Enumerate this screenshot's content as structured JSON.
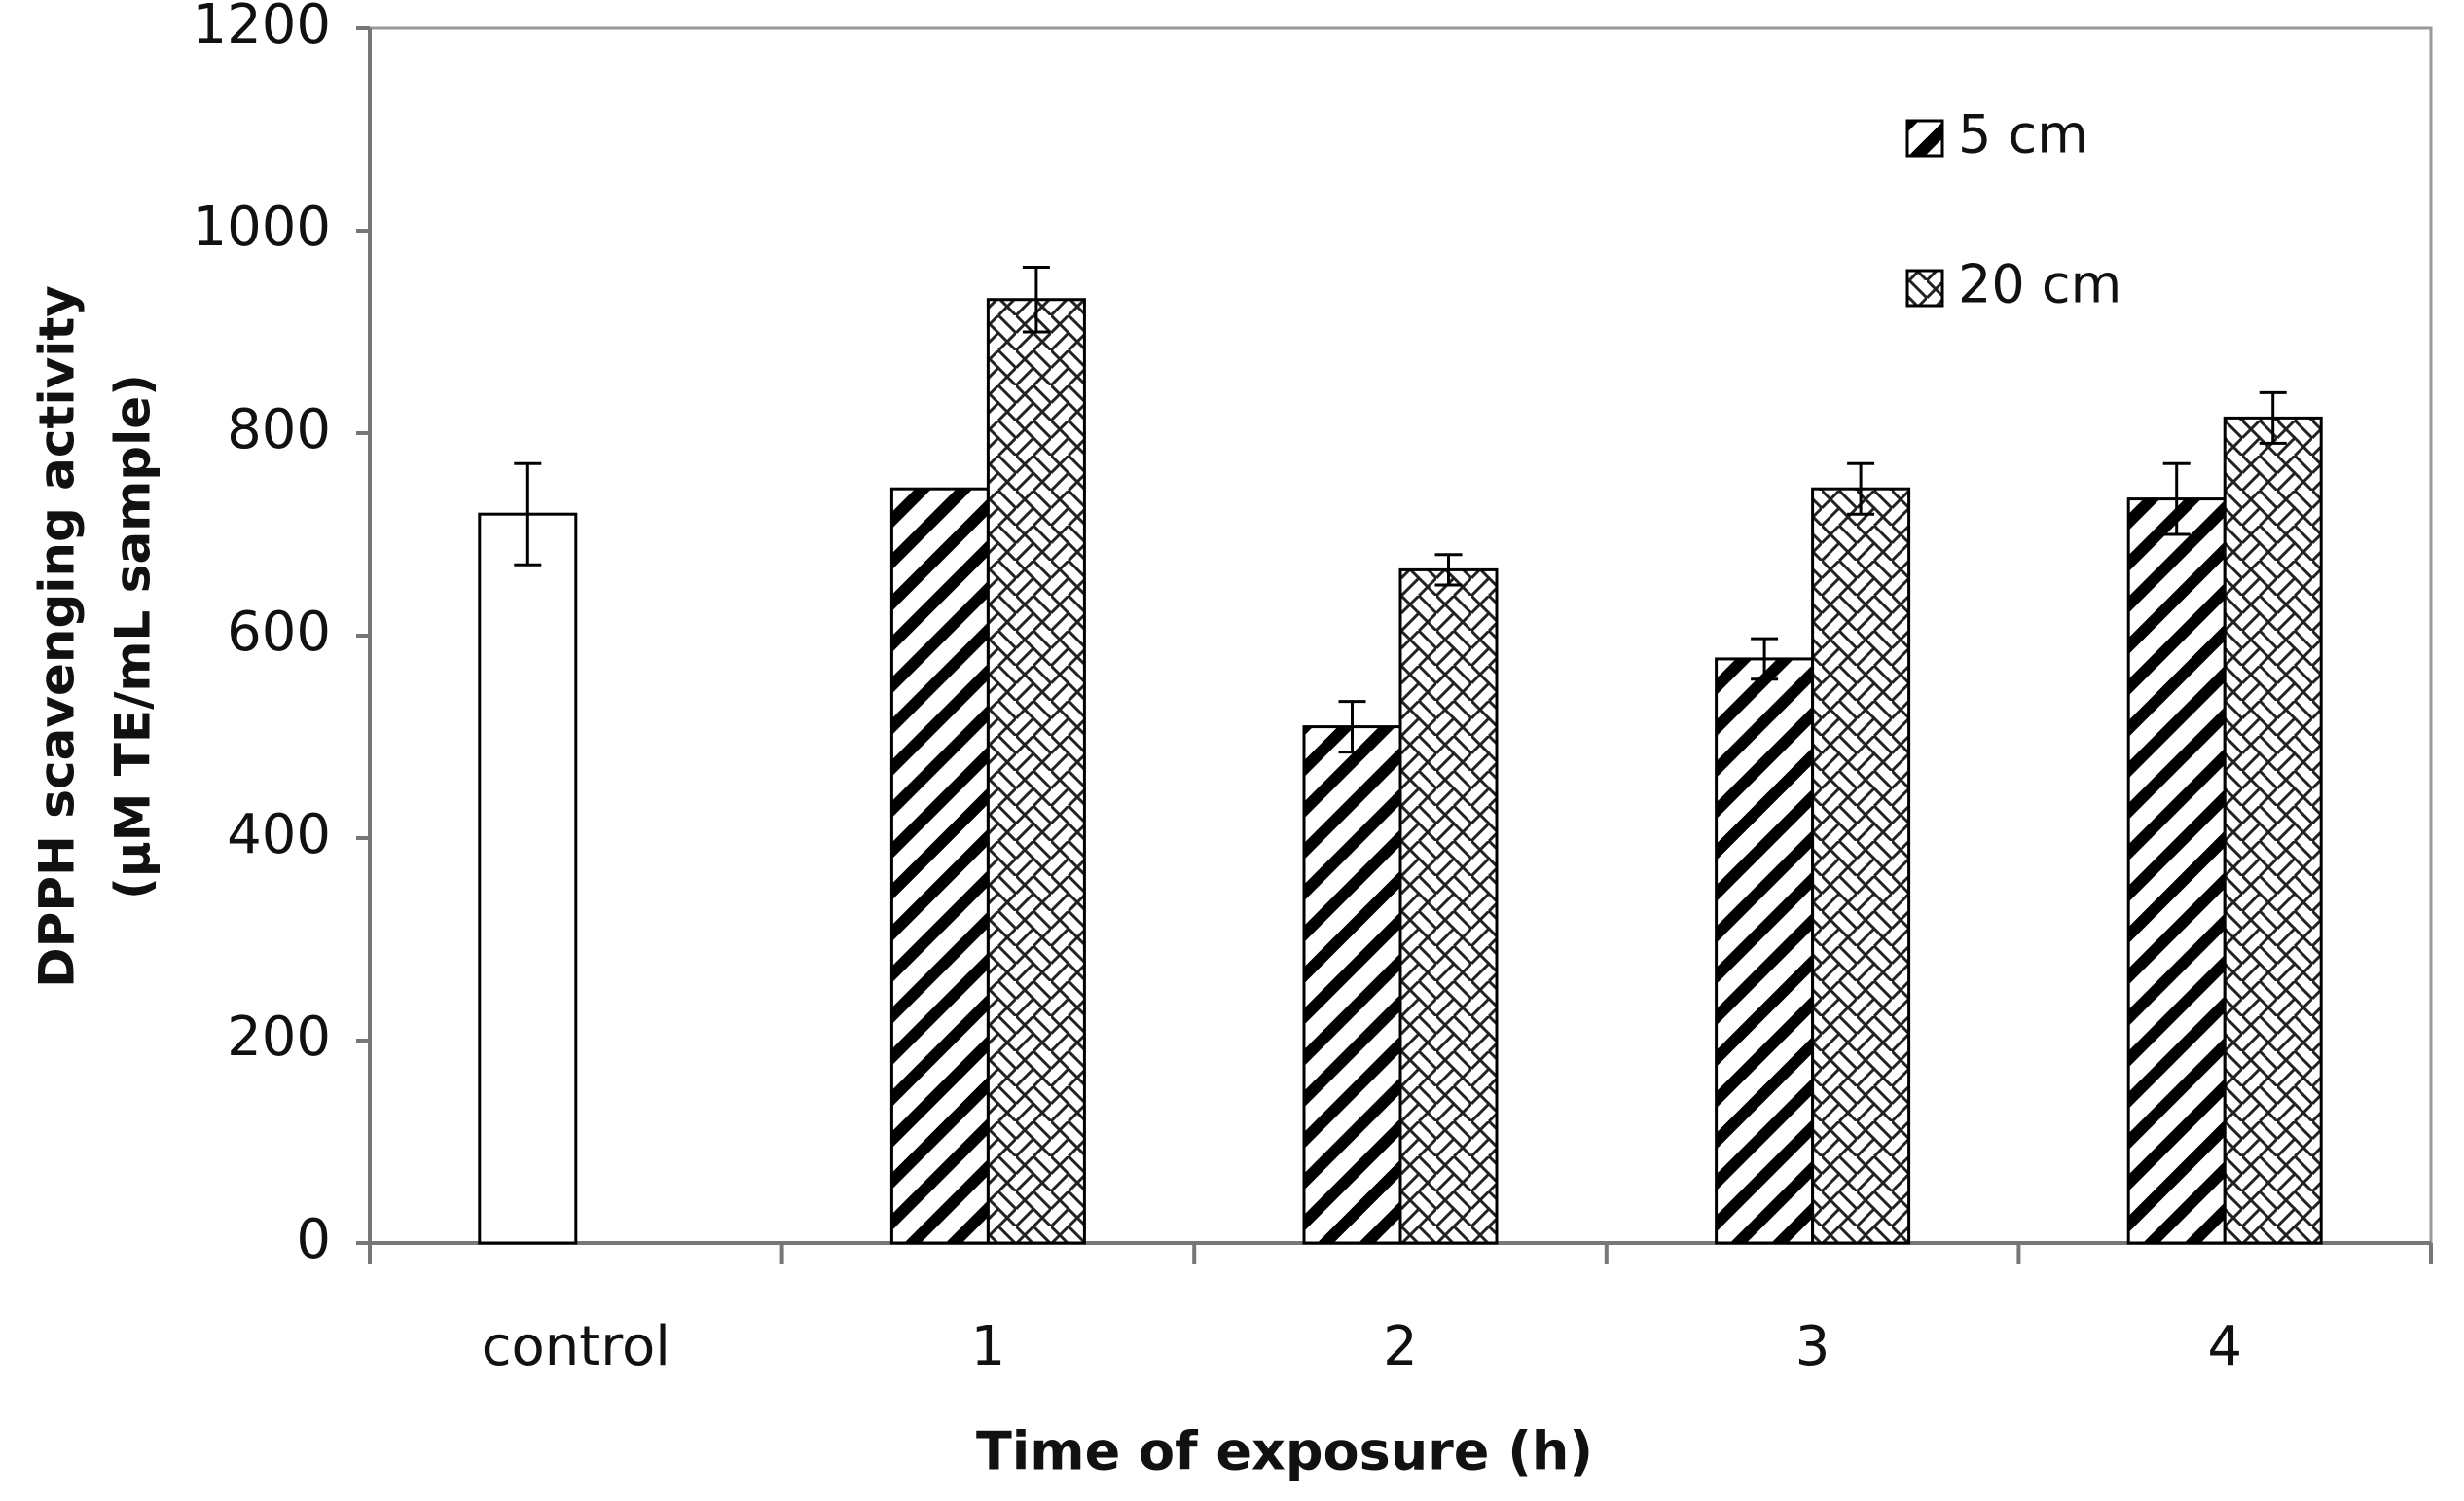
{
  "chart_data": {
    "type": "bar",
    "xlabel": "Time of exposure (h)",
    "ylabel": [
      "DPPH scavenging  activity",
      "(µM TE/mL sample)"
    ],
    "categories": [
      "control",
      "1",
      "2",
      "3",
      "4"
    ],
    "series": [
      {
        "color": "#ffffff",
        "pattern": "none",
        "values": [
          720,
          null,
          null,
          null,
          null
        ],
        "errors": [
          50,
          null,
          null,
          null,
          null
        ]
      },
      {
        "name": "5 cm",
        "color": "#000000",
        "pattern": "diagonal",
        "values": [
          null,
          745,
          510,
          577,
          735
        ],
        "errors": [
          null,
          null,
          25,
          20,
          35
        ]
      },
      {
        "name": "20 cm",
        "color": "#000000",
        "pattern": "zigzag",
        "values": [
          null,
          932,
          665,
          745,
          815
        ],
        "errors": [
          null,
          32,
          15,
          25,
          25
        ]
      }
    ],
    "ylim": [
      0,
      1200
    ],
    "yticks": [
      0,
      200,
      400,
      600,
      800,
      1000,
      1200
    ],
    "legend": "top-right"
  }
}
